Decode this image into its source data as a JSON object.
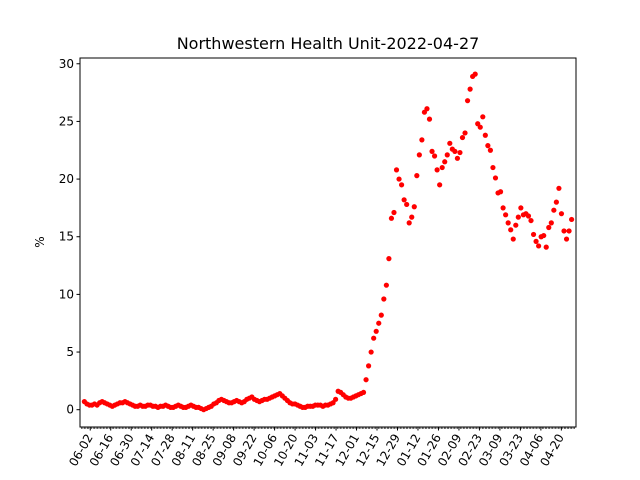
{
  "chart_data": {
    "type": "scatter",
    "title": "Northwestern Health Unit-2022-04-27",
    "xlabel": "",
    "ylabel": "%",
    "color": "#ff0000",
    "x_start": "2021-05-29",
    "x_end": "2022-04-27",
    "xlim": [
      "2021-05-26",
      "2022-04-30"
    ],
    "ylim": [
      -1.5,
      30.5
    ],
    "y_ticks": [
      0,
      5,
      10,
      15,
      20,
      25,
      30
    ],
    "x_ticks": [
      "06-02",
      "06-16",
      "06-30",
      "07-14",
      "07-28",
      "08-11",
      "08-25",
      "09-08",
      "09-22",
      "10-06",
      "10-20",
      "11-03",
      "11-17",
      "12-01",
      "12-15",
      "12-29",
      "01-12",
      "01-26",
      "02-09",
      "02-23",
      "03-09",
      "03-23",
      "04-06",
      "04-20"
    ],
    "y": [
      0.7,
      0.5,
      0.4,
      0.4,
      0.5,
      0.4,
      0.6,
      0.7,
      0.6,
      0.5,
      0.4,
      0.3,
      0.4,
      0.5,
      0.6,
      0.6,
      0.7,
      0.6,
      0.5,
      0.4,
      0.3,
      0.3,
      0.4,
      0.3,
      0.3,
      0.4,
      0.4,
      0.3,
      0.3,
      0.2,
      0.3,
      0.3,
      0.4,
      0.3,
      0.2,
      0.2,
      0.3,
      0.4,
      0.3,
      0.2,
      0.2,
      0.3,
      0.4,
      0.3,
      0.2,
      0.2,
      0.1,
      0.0,
      0.1,
      0.2,
      0.3,
      0.5,
      0.6,
      0.8,
      0.9,
      0.8,
      0.7,
      0.6,
      0.6,
      0.7,
      0.8,
      0.7,
      0.6,
      0.7,
      0.9,
      1.0,
      1.1,
      0.9,
      0.8,
      0.7,
      0.8,
      0.9,
      0.9,
      1.0,
      1.1,
      1.2,
      1.3,
      1.4,
      1.2,
      1.0,
      0.8,
      0.6,
      0.5,
      0.5,
      0.4,
      0.3,
      0.2,
      0.2,
      0.3,
      0.3,
      0.3,
      0.4,
      0.4,
      0.4,
      0.3,
      0.4,
      0.4,
      0.5,
      0.6,
      0.9,
      1.6,
      1.5,
      1.3,
      1.1,
      1.0,
      1.0,
      1.1,
      1.2,
      1.3,
      1.4,
      1.5,
      2.6,
      3.8,
      5.0,
      6.2,
      6.8,
      7.5,
      8.2,
      9.6,
      10.8,
      13.1,
      16.6,
      17.1,
      20.8,
      20.0,
      19.5,
      18.2,
      17.8,
      16.2,
      16.7,
      17.6,
      20.3,
      22.1,
      23.4,
      25.8,
      26.1,
      25.2,
      22.4,
      22.0,
      20.8,
      19.5,
      21.0,
      21.5,
      22.1,
      23.1,
      22.6,
      22.4,
      21.8,
      22.3,
      23.6,
      24.0,
      26.8,
      27.8,
      28.9,
      29.1,
      24.8,
      24.5,
      25.4,
      23.8,
      22.9,
      22.5,
      21.0,
      20.1,
      18.8,
      18.9,
      17.5,
      16.9,
      16.2,
      15.6,
      14.8,
      16.0,
      16.7,
      17.5,
      16.9,
      17.0,
      16.8,
      16.4,
      15.2,
      14.6,
      14.2,
      15.0,
      15.1,
      14.1,
      15.8,
      16.2,
      17.3,
      18.0,
      19.2,
      17.0,
      15.5,
      14.8,
      15.5,
      16.5
    ],
    "grid": false,
    "legend": "none"
  }
}
